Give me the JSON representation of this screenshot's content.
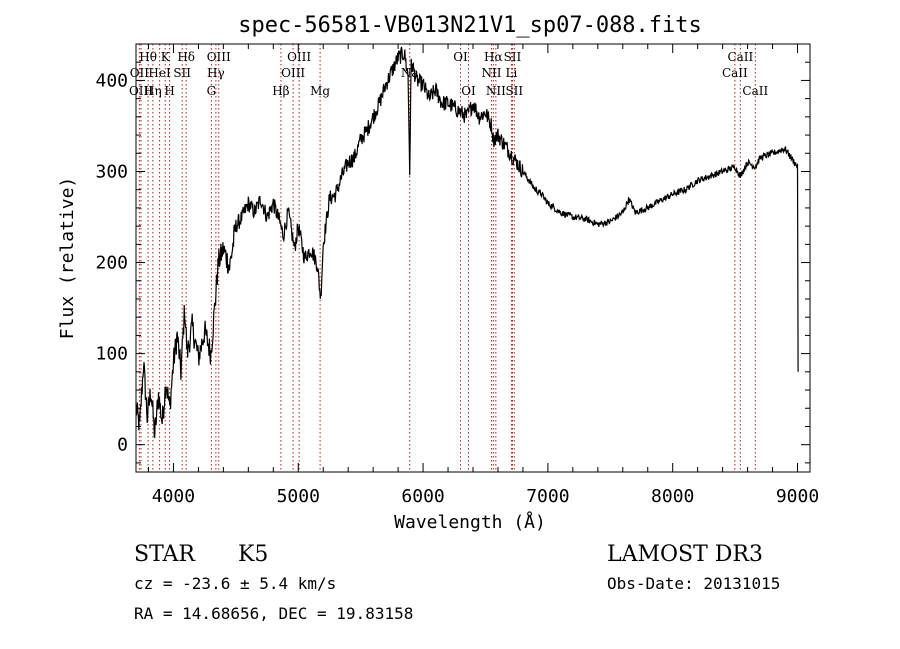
{
  "chart_data": {
    "type": "line",
    "title": "spec-56581-VB013N21V1_sp07-088.fits",
    "xlabel": "Wavelength (Å)",
    "ylabel": "Flux (relative)",
    "xlim": [
      3700,
      9100
    ],
    "ylim": [
      -30,
      440
    ],
    "xticks": [
      4000,
      5000,
      6000,
      7000,
      8000,
      9000
    ],
    "yticks": [
      0,
      100,
      200,
      300,
      400
    ],
    "grid": false,
    "series": [
      {
        "points": [
          [
            3700,
            40
          ],
          [
            3730,
            20
          ],
          [
            3760,
            90
          ],
          [
            3790,
            30
          ],
          [
            3820,
            60
          ],
          [
            3850,
            10
          ],
          [
            3880,
            55
          ],
          [
            3910,
            25
          ],
          [
            3940,
            70
          ],
          [
            3970,
            40
          ],
          [
            4000,
            90
          ],
          [
            4030,
            120
          ],
          [
            4060,
            80
          ],
          [
            4090,
            150
          ],
          [
            4110,
            100
          ],
          [
            4150,
            130
          ],
          [
            4200,
            95
          ],
          [
            4250,
            125
          ],
          [
            4300,
            100
          ],
          [
            4330,
            150
          ],
          [
            4360,
            200
          ],
          [
            4400,
            215
          ],
          [
            4450,
            195
          ],
          [
            4500,
            240
          ],
          [
            4550,
            250
          ],
          [
            4600,
            265
          ],
          [
            4650,
            255
          ],
          [
            4700,
            270
          ],
          [
            4750,
            250
          ],
          [
            4800,
            265
          ],
          [
            4850,
            245
          ],
          [
            4880,
            230
          ],
          [
            4920,
            255
          ],
          [
            4970,
            215
          ],
          [
            5000,
            240
          ],
          [
            5050,
            205
          ],
          [
            5100,
            215
          ],
          [
            5150,
            200
          ],
          [
            5180,
            160
          ],
          [
            5200,
            220
          ],
          [
            5250,
            270
          ],
          [
            5300,
            275
          ],
          [
            5350,
            295
          ],
          [
            5400,
            310
          ],
          [
            5450,
            315
          ],
          [
            5500,
            335
          ],
          [
            5550,
            345
          ],
          [
            5600,
            360
          ],
          [
            5650,
            375
          ],
          [
            5700,
            395
          ],
          [
            5750,
            410
          ],
          [
            5800,
            425
          ],
          [
            5850,
            430
          ],
          [
            5880,
            405
          ],
          [
            5893,
            300
          ],
          [
            5905,
            420
          ],
          [
            5950,
            400
          ],
          [
            6000,
            395
          ],
          [
            6050,
            380
          ],
          [
            6100,
            390
          ],
          [
            6150,
            375
          ],
          [
            6200,
            375
          ],
          [
            6250,
            370
          ],
          [
            6300,
            365
          ],
          [
            6350,
            360
          ],
          [
            6400,
            375
          ],
          [
            6450,
            360
          ],
          [
            6500,
            365
          ],
          [
            6550,
            350
          ],
          [
            6563,
            335
          ],
          [
            6600,
            340
          ],
          [
            6650,
            330
          ],
          [
            6700,
            320
          ],
          [
            6750,
            310
          ],
          [
            6800,
            300
          ],
          [
            6850,
            290
          ],
          [
            6900,
            280
          ],
          [
            6950,
            275
          ],
          [
            7000,
            265
          ],
          [
            7100,
            255
          ],
          [
            7200,
            250
          ],
          [
            7300,
            248
          ],
          [
            7400,
            242
          ],
          [
            7500,
            245
          ],
          [
            7600,
            255
          ],
          [
            7650,
            270
          ],
          [
            7700,
            255
          ],
          [
            7800,
            260
          ],
          [
            7900,
            268
          ],
          [
            8000,
            275
          ],
          [
            8100,
            280
          ],
          [
            8200,
            290
          ],
          [
            8300,
            295
          ],
          [
            8400,
            300
          ],
          [
            8500,
            305
          ],
          [
            8542,
            295
          ],
          [
            8600,
            310
          ],
          [
            8662,
            305
          ],
          [
            8700,
            315
          ],
          [
            8800,
            320
          ],
          [
            8900,
            325
          ],
          [
            8950,
            315
          ],
          [
            9000,
            305
          ],
          [
            9005,
            80
          ]
        ]
      }
    ],
    "line_markers": {
      "color": "#b22222",
      "items": [
        {
          "label": "Hθ",
          "x": 3797,
          "row": 1
        },
        {
          "label": "OII",
          "x": 3727,
          "row": 2
        },
        {
          "label": "OIII",
          "x": 3740,
          "row": 3
        },
        {
          "label": "K",
          "x": 3934,
          "row": 1
        },
        {
          "label": "HeI",
          "x": 3889,
          "row": 2
        },
        {
          "label": "Hη",
          "x": 3835,
          "row": 3
        },
        {
          "label": "H",
          "x": 3969,
          "row": 3
        },
        {
          "label": "SII",
          "x": 4070,
          "row": 2
        },
        {
          "label": "Hδ",
          "x": 4102,
          "row": 1
        },
        {
          "label": "OIII",
          "x": 4363,
          "row": 1
        },
        {
          "label": "Hγ",
          "x": 4340,
          "row": 2
        },
        {
          "label": "G",
          "x": 4304,
          "row": 3
        },
        {
          "label": "OIII",
          "x": 5007,
          "row": 1
        },
        {
          "label": "OIII",
          "x": 4959,
          "row": 2
        },
        {
          "label": "Hβ",
          "x": 4861,
          "row": 3
        },
        {
          "label": "Mg",
          "x": 5175,
          "row": 3
        },
        {
          "label": "Na",
          "x": 5893,
          "row": 2
        },
        {
          "label": "OI",
          "x": 6300,
          "row": 1
        },
        {
          "label": "OI",
          "x": 6364,
          "row": 3
        },
        {
          "label": "Hα",
          "x": 6563,
          "row": 1
        },
        {
          "label": "SII",
          "x": 6716,
          "row": 1
        },
        {
          "label": "NII",
          "x": 6548,
          "row": 2
        },
        {
          "label": "Li",
          "x": 6708,
          "row": 2
        },
        {
          "label": "NII",
          "x": 6583,
          "row": 3
        },
        {
          "label": "SII",
          "x": 6731,
          "row": 3
        },
        {
          "label": "CaII",
          "x": 8542,
          "row": 1
        },
        {
          "label": "CaII",
          "x": 8498,
          "row": 2
        },
        {
          "label": "CaII",
          "x": 8662,
          "row": 3
        }
      ]
    }
  },
  "info": {
    "object_type": "STAR",
    "subclass": "K5",
    "survey": "LAMOST DR3",
    "cz": "cz = -23.6 ± 5.4 km/s",
    "obs_date": "Obs-Date: 20131015",
    "coords": "RA =  14.68656, DEC =  19.83158"
  }
}
